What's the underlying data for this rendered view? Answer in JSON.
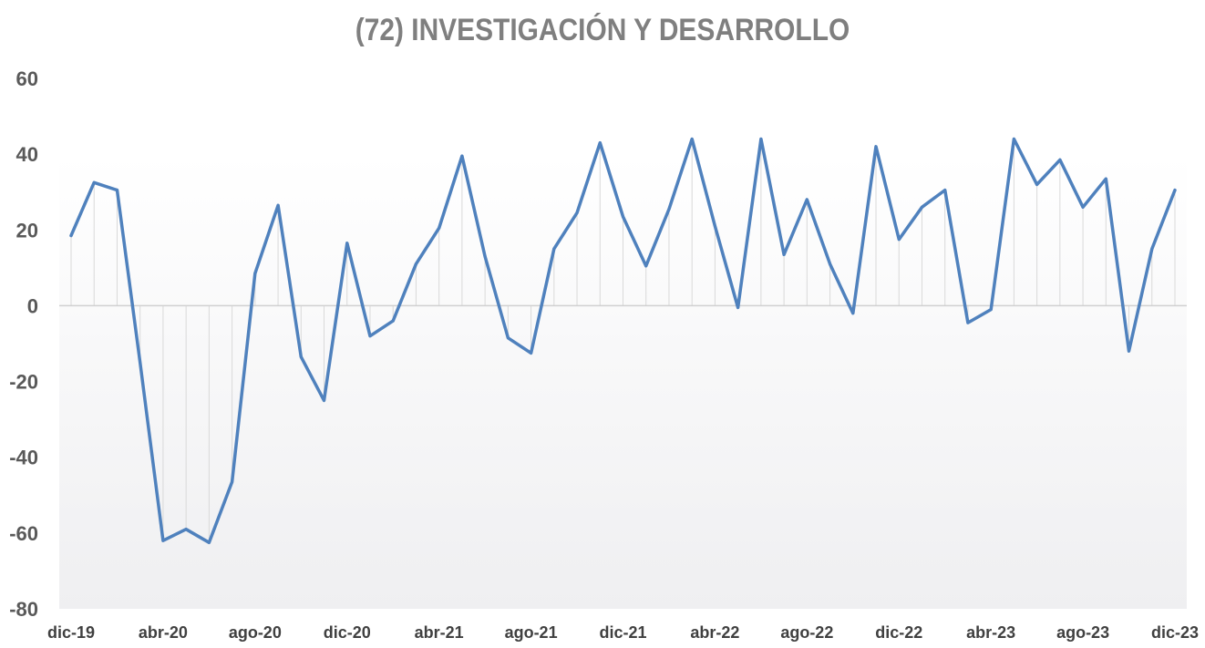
{
  "chart_data": {
    "type": "line",
    "title": "(72) INVESTIGACIÓN Y DESARROLLO",
    "xlabel": "",
    "ylabel": "",
    "ylim": [
      -80,
      60
    ],
    "yticks": [
      60,
      40,
      20,
      0,
      -20,
      -40,
      -60,
      -80
    ],
    "xtick_labels": [
      "dic-19",
      "abr-20",
      "ago-20",
      "dic-20",
      "abr-21",
      "ago-21",
      "dic-21",
      "abr-22",
      "ago-22",
      "dic-22",
      "abr-23",
      "ago-23",
      "dic-23"
    ],
    "xtick_every": 4,
    "grid": false,
    "drop_lines": true,
    "line_color": "#4f81bd",
    "categories": [
      "dic-19",
      "ene-20",
      "feb-20",
      "mar-20",
      "abr-20",
      "may-20",
      "jun-20",
      "jul-20",
      "ago-20",
      "sep-20",
      "oct-20",
      "nov-20",
      "dic-20",
      "ene-21",
      "feb-21",
      "mar-21",
      "abr-21",
      "may-21",
      "jun-21",
      "jul-21",
      "ago-21",
      "sep-21",
      "oct-21",
      "nov-21",
      "dic-21",
      "ene-22",
      "feb-22",
      "mar-22",
      "abr-22",
      "may-22",
      "jun-22",
      "jul-22",
      "ago-22",
      "sep-22",
      "oct-22",
      "nov-22",
      "dic-22",
      "ene-23",
      "feb-23",
      "mar-23",
      "abr-23",
      "may-23",
      "jun-23",
      "jul-23",
      "ago-23",
      "sep-23",
      "oct-23",
      "nov-23",
      "dic-23"
    ],
    "values": [
      18.5,
      32.5,
      30.5,
      -15,
      -62,
      -59,
      -62.5,
      -46.5,
      8.5,
      26.5,
      -13.5,
      -25,
      16.5,
      -8,
      -4,
      11,
      20.5,
      39.5,
      13,
      -8.5,
      -12.5,
      15,
      24.5,
      43,
      23.5,
      10.5,
      25.5,
      44,
      21,
      -0.5,
      44,
      13.5,
      28,
      11,
      -2,
      42,
      17.5,
      26,
      30.5,
      -4.5,
      -1,
      44,
      32,
      38.5,
      26,
      33.5,
      -12,
      15,
      30.5
    ]
  }
}
